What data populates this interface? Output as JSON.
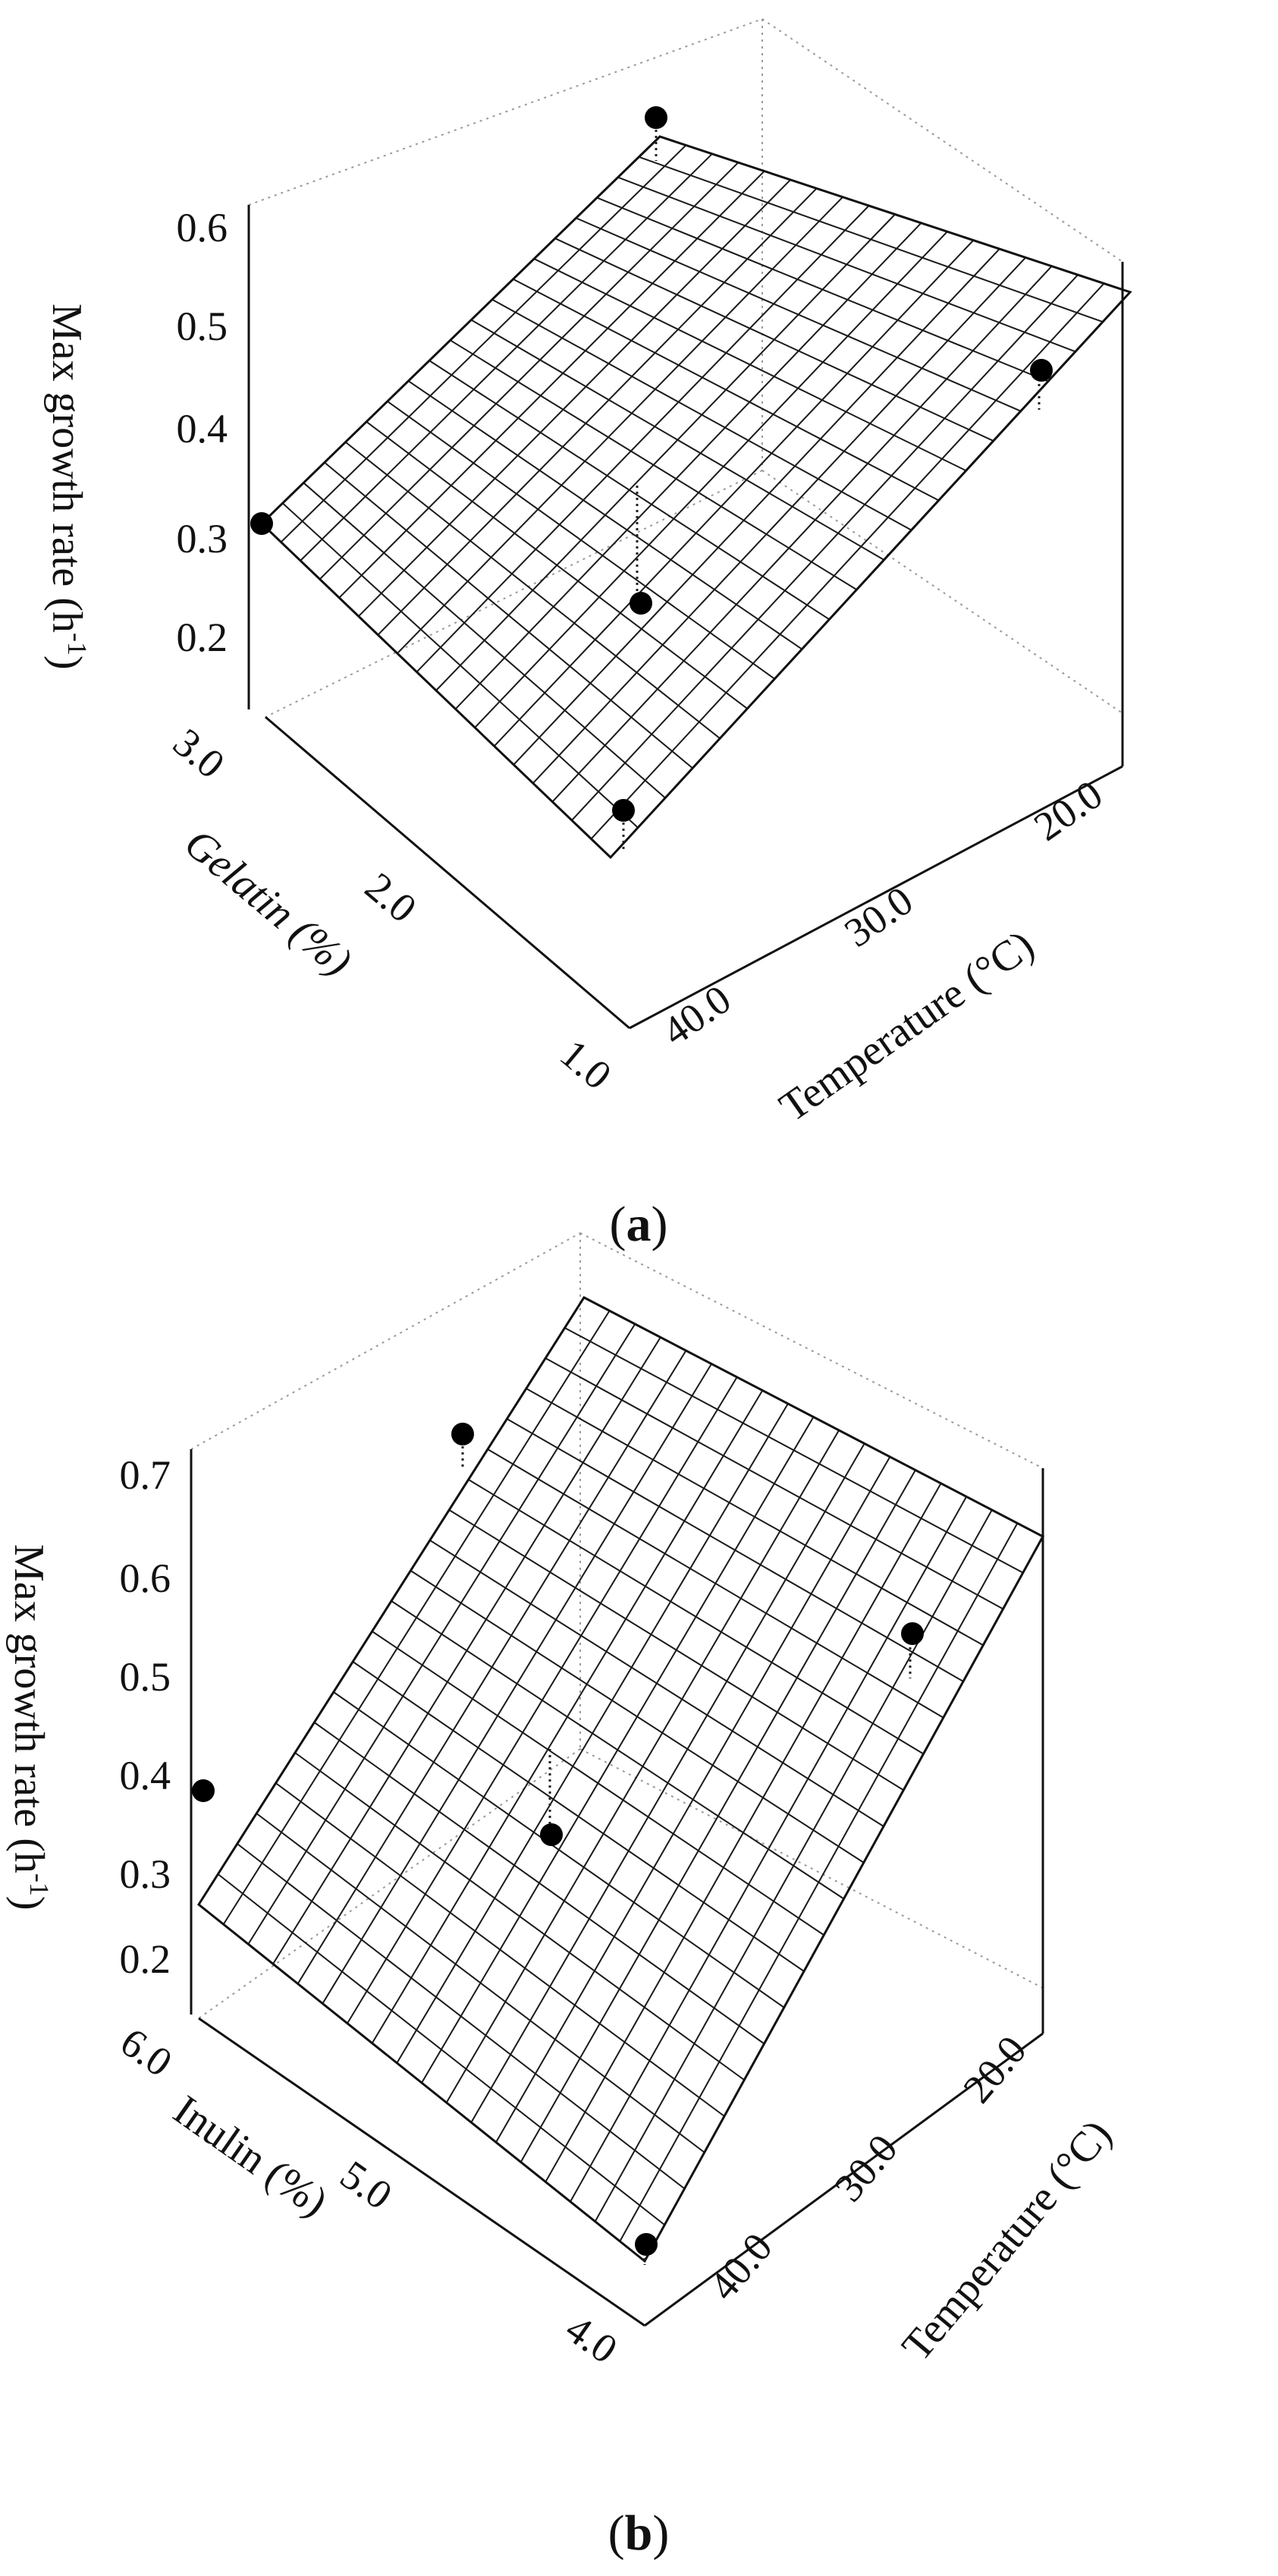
{
  "chart_data": [
    {
      "type": "surface3d",
      "panel_label": "a",
      "zlabel_text": "Max growth rate (h",
      "zlabel_sup": "-1",
      "zlabel_close": ")",
      "ylabel": "Gelatin  (%)",
      "xlabel": "Temperature (°C)",
      "z_ticks": [
        "0.6",
        "0.5",
        "0.4",
        "0.3",
        "0.2"
      ],
      "y_ticks": [
        "3.0",
        "2.0",
        "1.0"
      ],
      "x_ticks": [
        "20.0",
        "30.0",
        "40.0"
      ],
      "x_range": [
        20,
        45
      ],
      "y_range": [
        1.0,
        3.0
      ],
      "z_range": [
        0.15,
        0.65
      ],
      "surface_corners": {
        "x20_y3": 0.57,
        "x45_y3": 0.27,
        "x45_y1": 0.14,
        "x20_y1": 0.45
      },
      "points": [
        {
          "temperature": 45.0,
          "y": 3.0,
          "rate": 0.3
        },
        {
          "temperature": 20.0,
          "y": 3.0,
          "rate": 0.64
        },
        {
          "temperature": 20.0,
          "y": 1.0,
          "rate": 0.4
        },
        {
          "temperature": 32.5,
          "y": 2.0,
          "rate": 0.24
        },
        {
          "temperature": 45.0,
          "y": 1.0,
          "rate": 0.14
        }
      ],
      "grid": "on"
    },
    {
      "type": "surface3d",
      "panel_label": "b",
      "zlabel_text": "Max growth rate  (h",
      "zlabel_sup": "-1",
      "zlabel_close": ")",
      "ylabel": "Inulin (%)",
      "xlabel": "Temperature (°C)",
      "z_ticks": [
        "0.7",
        "0.6",
        "0.5",
        "0.4",
        "0.3",
        "0.2"
      ],
      "y_ticks": [
        "6.0",
        "5.0",
        "4.0"
      ],
      "x_ticks": [
        "20.0",
        "30.0",
        "40.0"
      ],
      "x_range": [
        15,
        45
      ],
      "y_range": [
        4.0,
        6.0
      ],
      "z_range": [
        0.15,
        0.75
      ],
      "surface_corners": {
        "x15_y6": 0.75,
        "x45_y6": 0.26,
        "x45_y4": 0.13,
        "x15_y4": 0.6
      },
      "points": [
        {
          "temperature": 45.0,
          "y": 6.0,
          "rate": 0.3
        },
        {
          "temperature": 20.0,
          "y": 6.0,
          "rate": 0.7
        },
        {
          "temperature": 20.0,
          "y": 4.0,
          "rate": 0.45
        },
        {
          "temperature": 32.5,
          "y": 5.0,
          "rate": 0.25
        },
        {
          "temperature": 45.0,
          "y": 4.0,
          "rate": 0.12
        }
      ],
      "grid": "on"
    }
  ]
}
